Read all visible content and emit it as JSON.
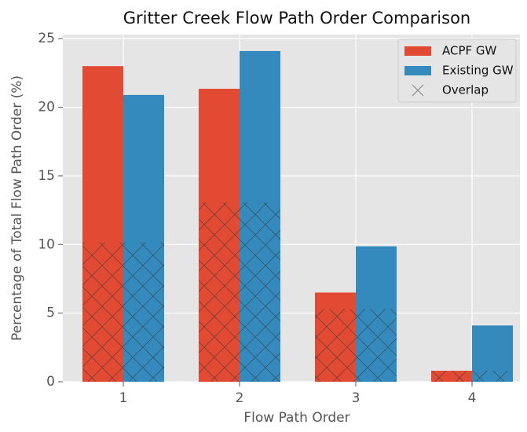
{
  "chart_data": {
    "type": "bar",
    "title": "Gritter Creek Flow Path Order Comparison",
    "x_label": "Flow Path Order",
    "y_label": "Percentage of Total Flow Path Order (%)",
    "categories": [
      "1",
      "2",
      "3",
      "4"
    ],
    "series": [
      {
        "name": "ACPF GW",
        "color": "#e24a33",
        "values": [
          23.0,
          21.35,
          6.5,
          0.8
        ]
      },
      {
        "name": "Existing GW",
        "color": "#348abd",
        "values": [
          20.9,
          24.1,
          9.87,
          4.1
        ]
      },
      {
        "name": "Overlap",
        "color": "#333333",
        "values": [
          10.16,
          13.07,
          5.3,
          0.8
        ]
      }
    ],
    "ylim": [
      0,
      25.3
    ],
    "yticks": [
      0,
      5,
      10,
      15,
      20,
      25
    ],
    "grid": true,
    "legend": "upper right"
  }
}
